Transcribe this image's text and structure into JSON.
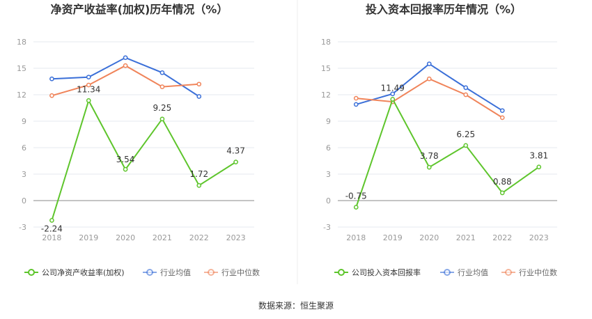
{
  "footer": {
    "source_label": "数据来源：恒生聚源"
  },
  "colors": {
    "company": "#5ec52c",
    "industry_avg": "#3a6fd8",
    "industry_median": "#f0845a",
    "grid": "#e6e9ef",
    "axis": "#999999",
    "tick": "#999999",
    "title": "#333333"
  },
  "chart_data": [
    {
      "type": "line",
      "title": "净资产收益率(加权)历年情况（%）",
      "categories": [
        "2018",
        "2019",
        "2020",
        "2021",
        "2022",
        "2023"
      ],
      "ylim": [
        -3,
        18
      ],
      "yticks": [
        -3,
        0,
        3,
        6,
        9,
        12,
        15,
        18
      ],
      "grid": true,
      "legend_position": "bottom",
      "series": [
        {
          "name": "公司净资产收益率(加权)",
          "color_key": "company",
          "values": [
            -2.24,
            11.34,
            3.54,
            9.25,
            1.72,
            4.37
          ],
          "labels": [
            "-2.24",
            "11.34",
            "3.54",
            "9.25",
            "1.72",
            "4.37"
          ]
        },
        {
          "name": "行业均值",
          "color_key": "industry_avg",
          "values": [
            13.8,
            14.0,
            16.2,
            14.5,
            11.8,
            null
          ]
        },
        {
          "name": "行业中位数",
          "color_key": "industry_median",
          "values": [
            11.9,
            13.1,
            15.3,
            12.9,
            13.2,
            null
          ]
        }
      ]
    },
    {
      "type": "line",
      "title": "投入资本回报率历年情况（%）",
      "categories": [
        "2018",
        "2019",
        "2020",
        "2021",
        "2022",
        "2023"
      ],
      "ylim": [
        -3,
        18
      ],
      "yticks": [
        -3,
        0,
        3,
        6,
        9,
        12,
        15,
        18
      ],
      "grid": true,
      "legend_position": "bottom",
      "series": [
        {
          "name": "公司投入资本回报率",
          "color_key": "company",
          "values": [
            -0.75,
            11.49,
            3.78,
            6.25,
            0.88,
            3.81
          ],
          "labels": [
            "-0.75",
            "11.49",
            "3.78",
            "6.25",
            "0.88",
            "3.81"
          ]
        },
        {
          "name": "行业均值",
          "color_key": "industry_avg",
          "values": [
            10.9,
            12.1,
            15.5,
            12.8,
            10.2,
            null
          ]
        },
        {
          "name": "行业中位数",
          "color_key": "industry_median",
          "values": [
            11.6,
            11.2,
            13.8,
            12.0,
            9.4,
            null
          ]
        }
      ]
    }
  ]
}
